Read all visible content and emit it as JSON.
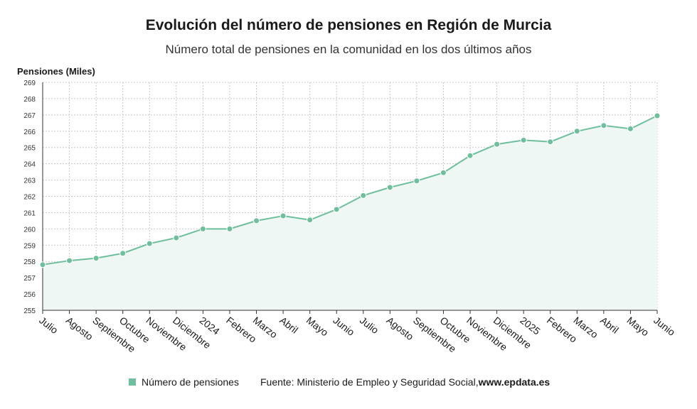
{
  "colors": {
    "line": "#6ebf9c",
    "area": "#eef7f3",
    "grid": "#c8c8c8",
    "axis": "#333333"
  },
  "chart_data": {
    "type": "area",
    "title": "Evolución del número de pensiones en Región de Murcia",
    "subtitle": "Número total de pensiones en la comunidad en los dos últimos años",
    "ylabel": "Pensiones (Miles)",
    "ylim": [
      255,
      269
    ],
    "yticks": [
      255,
      256,
      257,
      258,
      259,
      260,
      261,
      262,
      263,
      264,
      265,
      266,
      267,
      268,
      269
    ],
    "grid": true,
    "legend": "bottom",
    "categories": [
      "Julio",
      "Agosto",
      "Septiembre",
      "Octubre",
      "Noviembre",
      "Diciembre",
      "2024",
      "Febrero",
      "Marzo",
      "Abril",
      "Mayo",
      "Junio",
      "Julio",
      "Agosto",
      "Septiembre",
      "Octubre",
      "Noviembre",
      "Diciembre",
      "2025",
      "Febrero",
      "Marzo",
      "Abril",
      "Mayo",
      "Junio"
    ],
    "series": [
      {
        "name": "Número de pensiones",
        "values": [
          257.8,
          258.05,
          258.2,
          258.5,
          259.1,
          259.45,
          260.0,
          260.0,
          260.5,
          260.8,
          260.55,
          261.2,
          262.05,
          262.55,
          262.95,
          263.45,
          264.5,
          265.2,
          265.45,
          265.35,
          266.0,
          266.35,
          266.15,
          266.95
        ]
      }
    ]
  },
  "legend": {
    "label": "Número de pensiones",
    "source": "Fuente: Ministerio de Empleo y Seguridad Social, ",
    "source_url": "www.epdata.es"
  }
}
